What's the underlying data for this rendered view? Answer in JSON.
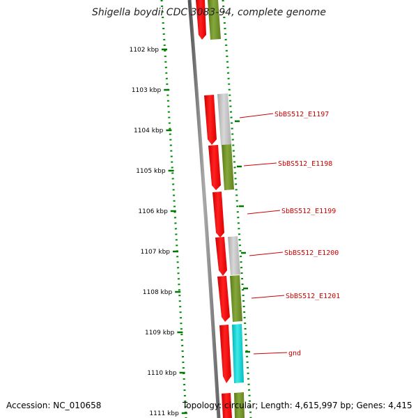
{
  "title": "Shigella boydii CDC 3083-94, complete genome",
  "accession": "Accession: NC_010658",
  "topology": "Topology: circular; Length: 4,615,997 bp; Genes: 4,415",
  "ticks": [
    {
      "label": "1102 kbp",
      "kbp": 1102
    },
    {
      "label": "1103 kbp",
      "kbp": 1103
    },
    {
      "label": "1104 kbp",
      "kbp": 1104
    },
    {
      "label": "1105 kbp",
      "kbp": 1105
    },
    {
      "label": "1106 kbp",
      "kbp": 1106
    },
    {
      "label": "1107 kbp",
      "kbp": 1107
    },
    {
      "label": "1108 kbp",
      "kbp": 1108
    },
    {
      "label": "1109 kbp",
      "kbp": 1109
    },
    {
      "label": "1110 kbp",
      "kbp": 1110
    },
    {
      "label": "1111 kbp",
      "kbp": 1111
    }
  ],
  "genes": [
    {
      "label": "SbBS512_E1197"
    },
    {
      "label": "SbBS512_E1198"
    },
    {
      "label": "SbBS512_E1199"
    },
    {
      "label": "SbBS512_E1200"
    },
    {
      "label": "SbBS512_E1201"
    },
    {
      "label": "gnd"
    }
  ],
  "colors": {
    "cds_red": "#ff0000",
    "cog_green": "#6b8e23",
    "cog_grey": "#bdbdbd",
    "cog_cyan": "#00cccc",
    "label_red": "#cc0000",
    "tick_green": "#007700",
    "backbone": "#777777"
  }
}
